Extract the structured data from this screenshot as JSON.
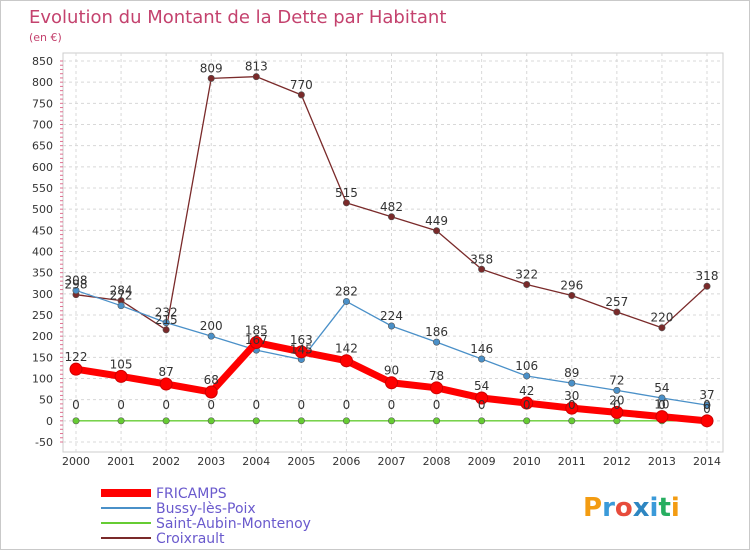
{
  "title": "Evolution du Montant de la Dette par Habitant",
  "subtitle": "(en €)",
  "logo": {
    "text": "Proxiti",
    "letter_colors": [
      "#f39c12",
      "#3a9ad9",
      "#e74c3c",
      "#2e86c1",
      "#3a9ad9",
      "#27ae60",
      "#f39c12"
    ]
  },
  "chart_data": {
    "type": "line",
    "title": "Evolution du Montant de la Dette par Habitant",
    "subtitle": "(en €)",
    "x": [
      "2000",
      "2001",
      "2002",
      "2003",
      "2004",
      "2005",
      "2006",
      "2007",
      "2008",
      "2009",
      "2010",
      "2011",
      "2012",
      "2013",
      "2014"
    ],
    "yticks": [
      -50,
      0,
      50,
      100,
      150,
      200,
      250,
      300,
      350,
      400,
      450,
      500,
      550,
      600,
      650,
      700,
      750,
      800,
      850
    ],
    "ylim": [
      -50,
      850
    ],
    "grid": true,
    "legend_position": "bottom-left",
    "series": [
      {
        "name": "Croixrault",
        "color": "#7a2a2a",
        "values": [
          298,
          284,
          215,
          809,
          813,
          770,
          515,
          482,
          449,
          358,
          322,
          296,
          257,
          220,
          318
        ]
      },
      {
        "name": "Bussy-lès-Poix",
        "color": "#4a90c8",
        "values": [
          308,
          272,
          232,
          200,
          167,
          145,
          282,
          224,
          186,
          146,
          106,
          89,
          72,
          54,
          37
        ]
      },
      {
        "name": "Saint-Aubin-Montenoy",
        "color": "#66cc33",
        "values": [
          0,
          0,
          0,
          0,
          0,
          0,
          0,
          0,
          0,
          0,
          0,
          0,
          0,
          0,
          0
        ]
      },
      {
        "name": "FRICAMPS",
        "color": "#ff0000",
        "values": [
          122,
          105,
          87,
          68,
          185,
          163,
          142,
          90,
          78,
          54,
          42,
          30,
          20,
          10,
          0
        ]
      }
    ],
    "labels": {
      "Croixrault": [
        "298",
        "284",
        "215",
        "809",
        "813",
        "770",
        "515",
        "482",
        "449",
        "358",
        "322",
        "296",
        "257",
        "220",
        "318"
      ],
      "Bussy-lès-Poix": [
        "308",
        "272",
        "232",
        "200",
        "167",
        "145",
        "282",
        "224",
        "186",
        "146",
        "106",
        "89",
        "72",
        "54",
        "37"
      ],
      "Saint-Aubin-Montenoy": [
        "0",
        "0",
        "0",
        "0",
        "0",
        "0",
        "0",
        "0",
        "0",
        "0",
        "0",
        "0",
        "0",
        "0",
        "0"
      ],
      "FRICAMPS": [
        "122",
        "105",
        "87",
        "68",
        "185",
        "163",
        "142",
        "90",
        "78",
        "54",
        "42",
        "30",
        "20",
        "10",
        "0"
      ]
    },
    "legend": [
      "FRICAMPS",
      "Bussy-lès-Poix",
      "Saint-Aubin-Montenoy",
      "Croixrault"
    ]
  }
}
